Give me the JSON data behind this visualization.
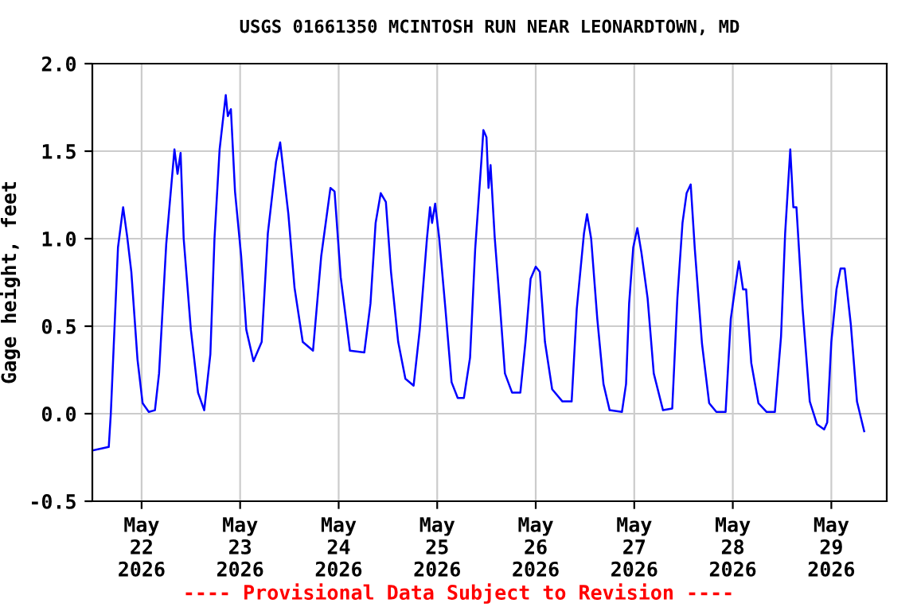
{
  "chart_data": {
    "type": "line",
    "title": "USGS 01661350 MCINTOSH RUN NEAR LEONARDTOWN, MD",
    "ylabel": "Gage height, feet",
    "annotations": [
      "---- Provisional Data Subject to Revision ----"
    ],
    "grid": true,
    "line_style": "solid",
    "marker": "none",
    "xlim": [
      "2026-05-21T12:00",
      "2026-05-29T13:30"
    ],
    "xticks": [
      {
        "value": "2026-05-22",
        "label": "May\n22\n2026"
      },
      {
        "value": "2026-05-23",
        "label": "May\n23\n2026"
      },
      {
        "value": "2026-05-24",
        "label": "May\n24\n2026"
      },
      {
        "value": "2026-05-25",
        "label": "May\n25\n2026"
      },
      {
        "value": "2026-05-26",
        "label": "May\n26\n2026"
      },
      {
        "value": "2026-05-27",
        "label": "May\n27\n2026"
      },
      {
        "value": "2026-05-28",
        "label": "May\n28\n2026"
      },
      {
        "value": "2026-05-29",
        "label": "May\n29\n2026"
      }
    ],
    "ylim": [
      -0.5,
      2.0
    ],
    "yticks": [
      {
        "value": -0.5,
        "label": "-0.5"
      },
      {
        "value": 0,
        "label": "0.0"
      },
      {
        "value": 0.5,
        "label": "0.5"
      },
      {
        "value": 1,
        "label": "1.0"
      },
      {
        "value": 1.5,
        "label": "1.5"
      },
      {
        "value": 2,
        "label": "2.0"
      }
    ],
    "x": [
      "2026-05-21T12:00",
      "2026-05-21T16:00",
      "2026-05-21T16:30",
      "2026-05-21T17:15",
      "2026-05-21T18:15",
      "2026-05-21T19:30",
      "2026-05-21T20:30",
      "2026-05-21T21:30",
      "2026-05-21T23:00",
      "2026-05-22T00:15",
      "2026-05-22T01:45",
      "2026-05-22T03:15",
      "2026-05-22T04:15",
      "2026-05-22T06:00",
      "2026-05-22T08:00",
      "2026-05-22T08:45",
      "2026-05-22T09:30",
      "2026-05-22T10:15",
      "2026-05-22T12:00",
      "2026-05-22T13:45",
      "2026-05-22T15:15",
      "2026-05-22T16:45",
      "2026-05-22T17:45",
      "2026-05-22T19:00",
      "2026-05-22T20:30",
      "2026-05-22T21:00",
      "2026-05-22T21:45",
      "2026-05-22T22:45",
      "2026-05-23T00:15",
      "2026-05-23T01:30",
      "2026-05-23T03:15",
      "2026-05-23T05:15",
      "2026-05-23T06:45",
      "2026-05-23T08:45",
      "2026-05-23T09:45",
      "2026-05-23T11:45",
      "2026-05-23T13:15",
      "2026-05-23T15:15",
      "2026-05-23T17:45",
      "2026-05-23T19:45",
      "2026-05-23T22:00",
      "2026-05-23T23:00",
      "2026-05-24T00:30",
      "2026-05-24T02:45",
      "2026-05-24T06:15",
      "2026-05-24T07:45",
      "2026-05-24T09:00",
      "2026-05-24T10:15",
      "2026-05-24T11:30",
      "2026-05-24T12:45",
      "2026-05-24T14:30",
      "2026-05-24T16:15",
      "2026-05-24T18:15",
      "2026-05-24T19:45",
      "2026-05-24T21:30",
      "2026-05-24T22:15",
      "2026-05-24T22:45",
      "2026-05-24T23:30",
      "2026-05-25T00:30",
      "2026-05-25T02:00",
      "2026-05-25T03:30",
      "2026-05-25T05:00",
      "2026-05-25T06:30",
      "2026-05-25T08:00",
      "2026-05-25T09:15",
      "2026-05-25T10:45",
      "2026-05-25T11:15",
      "2026-05-25T12:00",
      "2026-05-25T12:30",
      "2026-05-25T13:00",
      "2026-05-25T14:00",
      "2026-05-25T15:15",
      "2026-05-25T16:30",
      "2026-05-25T18:15",
      "2026-05-25T20:15",
      "2026-05-25T21:30",
      "2026-05-25T22:45",
      "2026-05-26T00:00",
      "2026-05-26T01:00",
      "2026-05-26T02:15",
      "2026-05-26T04:00",
      "2026-05-26T06:30",
      "2026-05-26T08:45",
      "2026-05-26T10:00",
      "2026-05-26T11:45",
      "2026-05-26T12:30",
      "2026-05-26T13:30",
      "2026-05-26T15:00",
      "2026-05-26T16:30",
      "2026-05-26T18:00",
      "2026-05-26T21:00",
      "2026-05-26T22:00",
      "2026-05-26T22:45",
      "2026-05-26T23:45",
      "2026-05-27T00:45",
      "2026-05-27T01:45",
      "2026-05-27T03:15",
      "2026-05-27T04:45",
      "2026-05-27T07:00",
      "2026-05-27T09:15",
      "2026-05-27T10:30",
      "2026-05-27T11:45",
      "2026-05-27T12:45",
      "2026-05-27T13:45",
      "2026-05-27T14:45",
      "2026-05-27T16:30",
      "2026-05-27T18:15",
      "2026-05-27T20:00",
      "2026-05-27T22:15",
      "2026-05-27T23:30",
      "2026-05-28T00:45",
      "2026-05-28T01:30",
      "2026-05-28T02:30",
      "2026-05-28T03:15",
      "2026-05-28T04:30",
      "2026-05-28T06:15",
      "2026-05-28T08:15",
      "2026-05-28T10:15",
      "2026-05-28T11:45",
      "2026-05-28T12:45",
      "2026-05-28T14:00",
      "2026-05-28T14:45",
      "2026-05-28T15:30",
      "2026-05-28T17:00",
      "2026-05-28T18:45",
      "2026-05-28T20:30",
      "2026-05-28T22:15",
      "2026-05-28T23:00",
      "2026-05-29T00:00",
      "2026-05-29T01:15",
      "2026-05-29T02:15",
      "2026-05-29T03:15",
      "2026-05-29T04:45",
      "2026-05-29T06:15",
      "2026-05-29T08:00"
    ],
    "series": [
      {
        "color": "#0000ff",
        "values": [
          -0.21,
          -0.19,
          0.0,
          0.41,
          0.95,
          1.18,
          1.01,
          0.81,
          0.31,
          0.06,
          0.01,
          0.02,
          0.23,
          0.97,
          1.51,
          1.37,
          1.49,
          1.0,
          0.48,
          0.12,
          0.02,
          0.34,
          1.0,
          1.51,
          1.82,
          1.7,
          1.74,
          1.27,
          0.9,
          0.48,
          0.3,
          0.41,
          1.03,
          1.44,
          1.55,
          1.14,
          0.72,
          0.41,
          0.36,
          0.9,
          1.29,
          1.27,
          0.78,
          0.36,
          0.35,
          0.63,
          1.09,
          1.26,
          1.21,
          0.81,
          0.41,
          0.2,
          0.16,
          0.48,
          1.0,
          1.18,
          1.09,
          1.2,
          1.0,
          0.6,
          0.18,
          0.09,
          0.09,
          0.32,
          0.94,
          1.44,
          1.62,
          1.58,
          1.29,
          1.42,
          1.01,
          0.63,
          0.23,
          0.12,
          0.12,
          0.41,
          0.77,
          0.84,
          0.81,
          0.41,
          0.14,
          0.07,
          0.07,
          0.6,
          1.03,
          1.14,
          1.0,
          0.54,
          0.17,
          0.02,
          0.01,
          0.17,
          0.63,
          0.95,
          1.06,
          0.92,
          0.66,
          0.23,
          0.02,
          0.03,
          0.66,
          1.09,
          1.26,
          1.31,
          0.94,
          0.4,
          0.06,
          0.01,
          0.01,
          0.54,
          0.75,
          0.87,
          0.71,
          0.71,
          0.29,
          0.06,
          0.01,
          0.01,
          0.44,
          1.03,
          1.51,
          1.18,
          1.18,
          0.6,
          0.07,
          -0.06,
          -0.09,
          -0.05,
          0.41,
          0.71,
          0.83,
          0.83,
          0.51,
          0.07,
          -0.1
        ]
      }
    ]
  }
}
